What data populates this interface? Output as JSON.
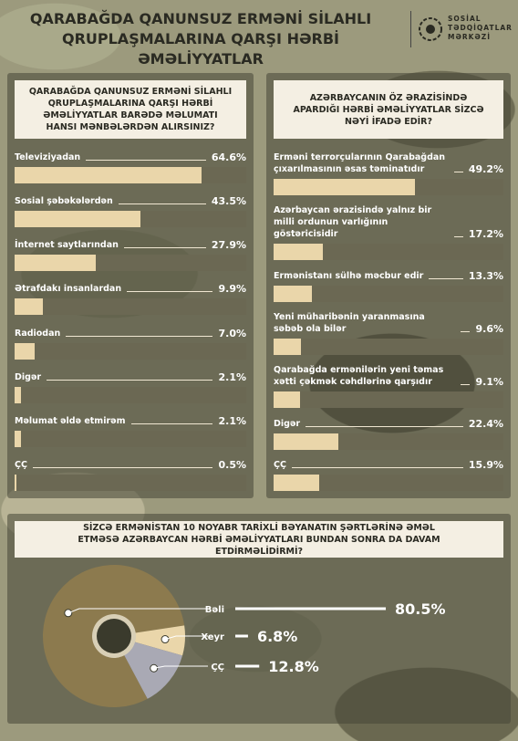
{
  "header": {
    "title": [
      "QARABAĞDA QANUNSUZ ERMƏNİ SİLAHLI",
      "QRUPLAŞMALARINA QARŞI HƏRBİ ƏMƏLİYYATLAR"
    ],
    "logo": [
      "SOSİAL",
      "TƏDQİQATLAR",
      "MƏRKƏZİ"
    ]
  },
  "chart_data": [
    {
      "type": "bar",
      "title": "QARABAĞDA QANUNSUZ ERMƏNİ SİLAHLI QRUPLAŞMALARINA QARŞI HƏRBİ ƏMƏLİYYATLAR BARƏDƏ MƏLUMATI HANSI MƏNBƏLƏRDƏN ALIRSINIZ?",
      "categories": [
        "Televiziyadan",
        "Sosial şəbəkələrdən",
        "İnternet saytlarından",
        "Ətrafdakı insanlardan",
        "Radiodan",
        "Digər",
        "Məlumat əldə etmirəm",
        "ÇÇ"
      ],
      "values": [
        64.6,
        43.5,
        27.9,
        9.9,
        7.0,
        2.1,
        2.1,
        0.5
      ],
      "value_labels": [
        "64.6%",
        "43.5%",
        "27.9%",
        "9.9%",
        "7.0%",
        "2.1%",
        "2.1%",
        "0.5%"
      ],
      "color": "#ead6aa",
      "xlim": [
        0,
        80
      ]
    },
    {
      "type": "bar",
      "title": "AZƏRBAYCANIN ÖZ ƏRAZİSİNDƏ APARDIĞI HƏRBİ ƏMƏLİYYATLAR SİZCƏ NƏYİ İFADƏ EDİR?",
      "categories": [
        "Erməni terrorçularının Qarabağdan çıxarılmasının əsas təminatıdır",
        "Azərbaycan ərazisində yalnız bir milli ordunun varlığının göstəricisidir",
        "Ermənistanı sülhə məcbur edir",
        "Yeni müharibənin yaranmasına səbəb ola bilər",
        "Qarabağda ermənilərin yeni təmas xətti çəkmək cəhdlərinə qarşıdır",
        "Digər",
        "ÇÇ"
      ],
      "values": [
        49.2,
        17.2,
        13.3,
        9.6,
        9.1,
        22.4,
        15.9
      ],
      "value_labels": [
        "49.2%",
        "17.2%",
        "13.3%",
        "9.6%",
        "9.1%",
        "22.4%",
        "15.9%"
      ],
      "color": "#ead6aa",
      "xlim": [
        0,
        80
      ]
    },
    {
      "type": "pie",
      "title": "SİZCƏ ERMƏNİSTAN 10 NOYABR TARİXLİ BƏYANATIN ŞƏRTLƏRİNƏ ƏMƏL ETMƏSƏ AZƏRBAYCAN HƏRBİ ƏMƏLİYYATLARI BUNDAN SONRA DA DAVAM ETDİRMƏLİDİRMİ?",
      "categories": [
        "Bəli",
        "Xeyr",
        "ÇÇ"
      ],
      "values": [
        80.5,
        6.8,
        12.8
      ],
      "value_labels": [
        "80.5%",
        "6.8%",
        "12.8%"
      ],
      "colors": [
        "#8c7a4e",
        "#ead6aa",
        "#a9a9b4"
      ]
    }
  ]
}
